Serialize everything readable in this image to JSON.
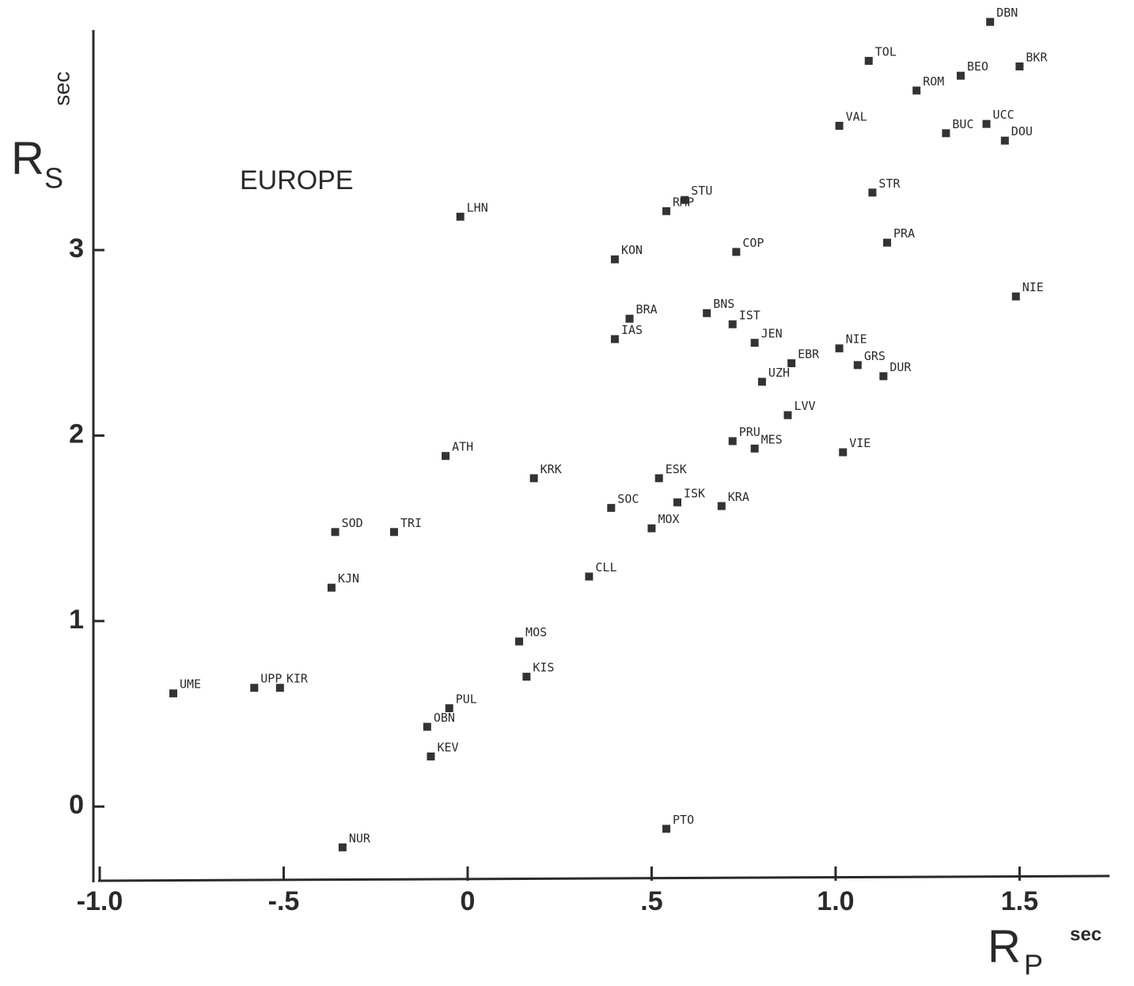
{
  "chart_data": {
    "type": "scatter",
    "annotation": "EUROPE",
    "x_label": {
      "symbol": "R",
      "subscript": "p",
      "unit": "sec"
    },
    "y_label": {
      "symbol": "R",
      "subscript": "s",
      "unit": "sec"
    },
    "xlim": [
      -1.0,
      1.74
    ],
    "ylim": [
      -0.4,
      4.25
    ],
    "xticks": [
      {
        "value": -1.0,
        "label": "-1.0"
      },
      {
        "value": -0.5,
        "label": "-.5"
      },
      0,
      {
        "value": 0.5,
        "label": ".5"
      },
      {
        "value": 1.0,
        "label": "1.0"
      },
      {
        "value": 1.5,
        "label": "1.5"
      }
    ],
    "yticks": [
      0,
      1,
      2,
      3
    ],
    "color": "#333333",
    "labels": [
      "DBN",
      "TOL",
      "BKR",
      "BEO",
      "ROM",
      "VAL",
      "UCC",
      "BUC",
      "DOU",
      "STR",
      "STU",
      "RMP",
      "LHN",
      "PRA",
      "COP",
      "KON",
      "NIE",
      "BNS",
      "BRA",
      "IST",
      "IAS",
      "JEN",
      "NIE",
      "EBR",
      "GRS",
      "DUR",
      "UZH",
      "LVV",
      "PRU",
      "MES",
      "VIE",
      "ATH",
      "KRK",
      "ESK",
      "ISK",
      "KRA",
      "SOC",
      "MOX",
      "SOD",
      "TRI",
      "CLL",
      "KJN",
      "MOS",
      "KIS",
      "UME",
      "UPP",
      "KIR",
      "PUL",
      "OBN",
      "KEV",
      "PTO",
      "NUR"
    ],
    "x": [
      1.42,
      1.09,
      1.5,
      1.34,
      1.22,
      1.01,
      1.41,
      1.3,
      1.46,
      1.1,
      0.59,
      0.54,
      -0.02,
      1.14,
      0.73,
      0.4,
      1.49,
      0.65,
      0.44,
      0.72,
      0.4,
      0.78,
      1.01,
      0.88,
      1.06,
      1.13,
      0.8,
      0.87,
      0.72,
      0.78,
      1.02,
      -0.06,
      0.18,
      0.52,
      0.57,
      0.69,
      0.39,
      0.5,
      -0.36,
      -0.2,
      0.33,
      -0.37,
      0.14,
      0.16,
      -0.8,
      -0.58,
      -0.51,
      -0.05,
      -0.11,
      -0.1,
      0.54,
      -0.34
    ],
    "y": [
      4.23,
      4.02,
      3.99,
      3.94,
      3.86,
      3.67,
      3.68,
      3.63,
      3.59,
      3.31,
      3.27,
      3.21,
      3.18,
      3.04,
      2.99,
      2.95,
      2.75,
      2.66,
      2.63,
      2.6,
      2.52,
      2.5,
      2.47,
      2.39,
      2.38,
      2.32,
      2.29,
      2.11,
      1.97,
      1.93,
      1.91,
      1.89,
      1.77,
      1.77,
      1.64,
      1.62,
      1.61,
      1.5,
      1.48,
      1.48,
      1.24,
      1.18,
      0.89,
      0.7,
      0.61,
      0.64,
      0.64,
      0.53,
      0.43,
      0.27,
      -0.12,
      -0.22
    ]
  }
}
